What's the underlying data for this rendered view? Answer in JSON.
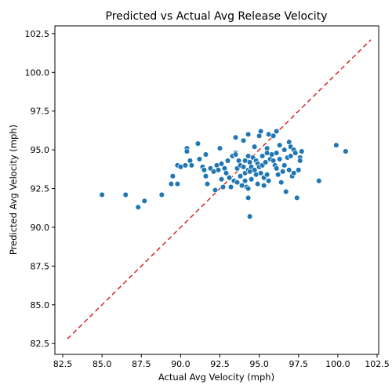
{
  "chart_data": {
    "type": "scatter",
    "title": "Predicted vs Actual Avg Release Velocity",
    "xlabel": "Actual Avg Velocity (mph)",
    "ylabel": "Predicted Avg Velocity (mph)",
    "xlim": [
      82.0,
      102.6
    ],
    "ylim": [
      81.8,
      103.0
    ],
    "xticks": [
      "82.5",
      "85.0",
      "87.5",
      "90.0",
      "92.5",
      "95.0",
      "97.5",
      "100.0",
      "102.5"
    ],
    "yticks": [
      "82.5",
      "85.0",
      "87.5",
      "90.0",
      "92.5",
      "95.0",
      "97.5",
      "100.0",
      "102.5"
    ],
    "xtick_values": [
      82.5,
      85.0,
      87.5,
      90.0,
      92.5,
      95.0,
      97.5,
      100.0,
      102.5
    ],
    "ytick_values": [
      82.5,
      85.0,
      87.5,
      90.0,
      92.5,
      95.0,
      97.5,
      100.0,
      102.5
    ],
    "grid": false,
    "point_color": "#1f77b4",
    "reference_line": {
      "style": "dashed",
      "color": "#d62728",
      "from": [
        82.8,
        82.8
      ],
      "to": [
        102.1,
        102.1
      ]
    },
    "points": [
      [
        85.0,
        92.1
      ],
      [
        86.5,
        92.1
      ],
      [
        87.3,
        91.3
      ],
      [
        87.7,
        91.7
      ],
      [
        88.8,
        92.1
      ],
      [
        89.4,
        92.8
      ],
      [
        89.5,
        93.3
      ],
      [
        89.8,
        94.0
      ],
      [
        89.8,
        92.8
      ],
      [
        90.0,
        93.9
      ],
      [
        90.3,
        94.0
      ],
      [
        90.4,
        95.1
      ],
      [
        90.4,
        94.9
      ],
      [
        90.6,
        94.3
      ],
      [
        90.7,
        94.0
      ],
      [
        91.1,
        95.4
      ],
      [
        91.2,
        94.4
      ],
      [
        91.4,
        93.9
      ],
      [
        91.5,
        93.7
      ],
      [
        91.6,
        94.7
      ],
      [
        91.6,
        93.3
      ],
      [
        91.7,
        92.8
      ],
      [
        91.9,
        93.8
      ],
      [
        92.1,
        93.6
      ],
      [
        92.2,
        92.4
      ],
      [
        92.3,
        94.0
      ],
      [
        92.4,
        93.7
      ],
      [
        92.5,
        95.1
      ],
      [
        92.6,
        94.1
      ],
      [
        92.6,
        93.1
      ],
      [
        92.7,
        92.6
      ],
      [
        92.8,
        93.8
      ],
      [
        92.9,
        93.5
      ],
      [
        93.0,
        94.3
      ],
      [
        93.1,
        93.2
      ],
      [
        93.2,
        92.6
      ],
      [
        93.3,
        94.6
      ],
      [
        93.4,
        93.0
      ],
      [
        93.5,
        95.8
      ],
      [
        93.5,
        94.8
      ],
      [
        93.5,
        94.7
      ],
      [
        93.6,
        93.8
      ],
      [
        93.6,
        92.9
      ],
      [
        93.7,
        94.3
      ],
      [
        93.8,
        94.0
      ],
      [
        93.8,
        93.3
      ],
      [
        93.9,
        92.7
      ],
      [
        94.0,
        95.6
      ],
      [
        94.0,
        93.9
      ],
      [
        94.1,
        94.3
      ],
      [
        94.1,
        93.5
      ],
      [
        94.1,
        93.0
      ],
      [
        94.2,
        92.6
      ],
      [
        94.3,
        96.0
      ],
      [
        94.3,
        94.6
      ],
      [
        94.3,
        93.7
      ],
      [
        94.3,
        92.5
      ],
      [
        94.3,
        91.9
      ],
      [
        94.4,
        94.2
      ],
      [
        94.4,
        93.6
      ],
      [
        94.4,
        90.7
      ],
      [
        94.5,
        93.9
      ],
      [
        94.5,
        93.1
      ],
      [
        94.6,
        94.5
      ],
      [
        94.7,
        95.2
      ],
      [
        94.7,
        93.7
      ],
      [
        94.8,
        94.3
      ],
      [
        94.8,
        93.4
      ],
      [
        94.9,
        92.8
      ],
      [
        94.9,
        94.1
      ],
      [
        95.0,
        95.9
      ],
      [
        95.0,
        93.9
      ],
      [
        95.1,
        93.5
      ],
      [
        95.1,
        96.2
      ],
      [
        95.2,
        94.6
      ],
      [
        95.2,
        94.0
      ],
      [
        95.3,
        93.2
      ],
      [
        95.3,
        92.7
      ],
      [
        95.4,
        94.2
      ],
      [
        95.5,
        95.1
      ],
      [
        95.5,
        94.8
      ],
      [
        95.5,
        93.4
      ],
      [
        95.6,
        96.0
      ],
      [
        95.6,
        93.0
      ],
      [
        95.7,
        94.4
      ],
      [
        95.8,
        94.7
      ],
      [
        95.9,
        94.3
      ],
      [
        95.9,
        95.9
      ],
      [
        96.0,
        94.0
      ],
      [
        96.1,
        96.2
      ],
      [
        96.1,
        94.8
      ],
      [
        96.1,
        93.8
      ],
      [
        96.2,
        93.4
      ],
      [
        96.3,
        95.3
      ],
      [
        96.3,
        94.4
      ],
      [
        96.4,
        92.9
      ],
      [
        96.5,
        93.6
      ],
      [
        96.6,
        95.0
      ],
      [
        96.6,
        94.0
      ],
      [
        96.7,
        92.3
      ],
      [
        96.8,
        94.5
      ],
      [
        96.9,
        95.5
      ],
      [
        96.9,
        93.7
      ],
      [
        97.0,
        95.2
      ],
      [
        97.0,
        94.6
      ],
      [
        97.1,
        93.3
      ],
      [
        97.2,
        95.0
      ],
      [
        97.2,
        93.5
      ],
      [
        97.3,
        94.8
      ],
      [
        97.4,
        91.9
      ],
      [
        97.5,
        93.7
      ],
      [
        97.6,
        94.5
      ],
      [
        97.6,
        94.3
      ],
      [
        97.7,
        94.9
      ],
      [
        98.8,
        93.0
      ],
      [
        99.9,
        95.3
      ],
      [
        100.5,
        94.9
      ]
    ]
  }
}
